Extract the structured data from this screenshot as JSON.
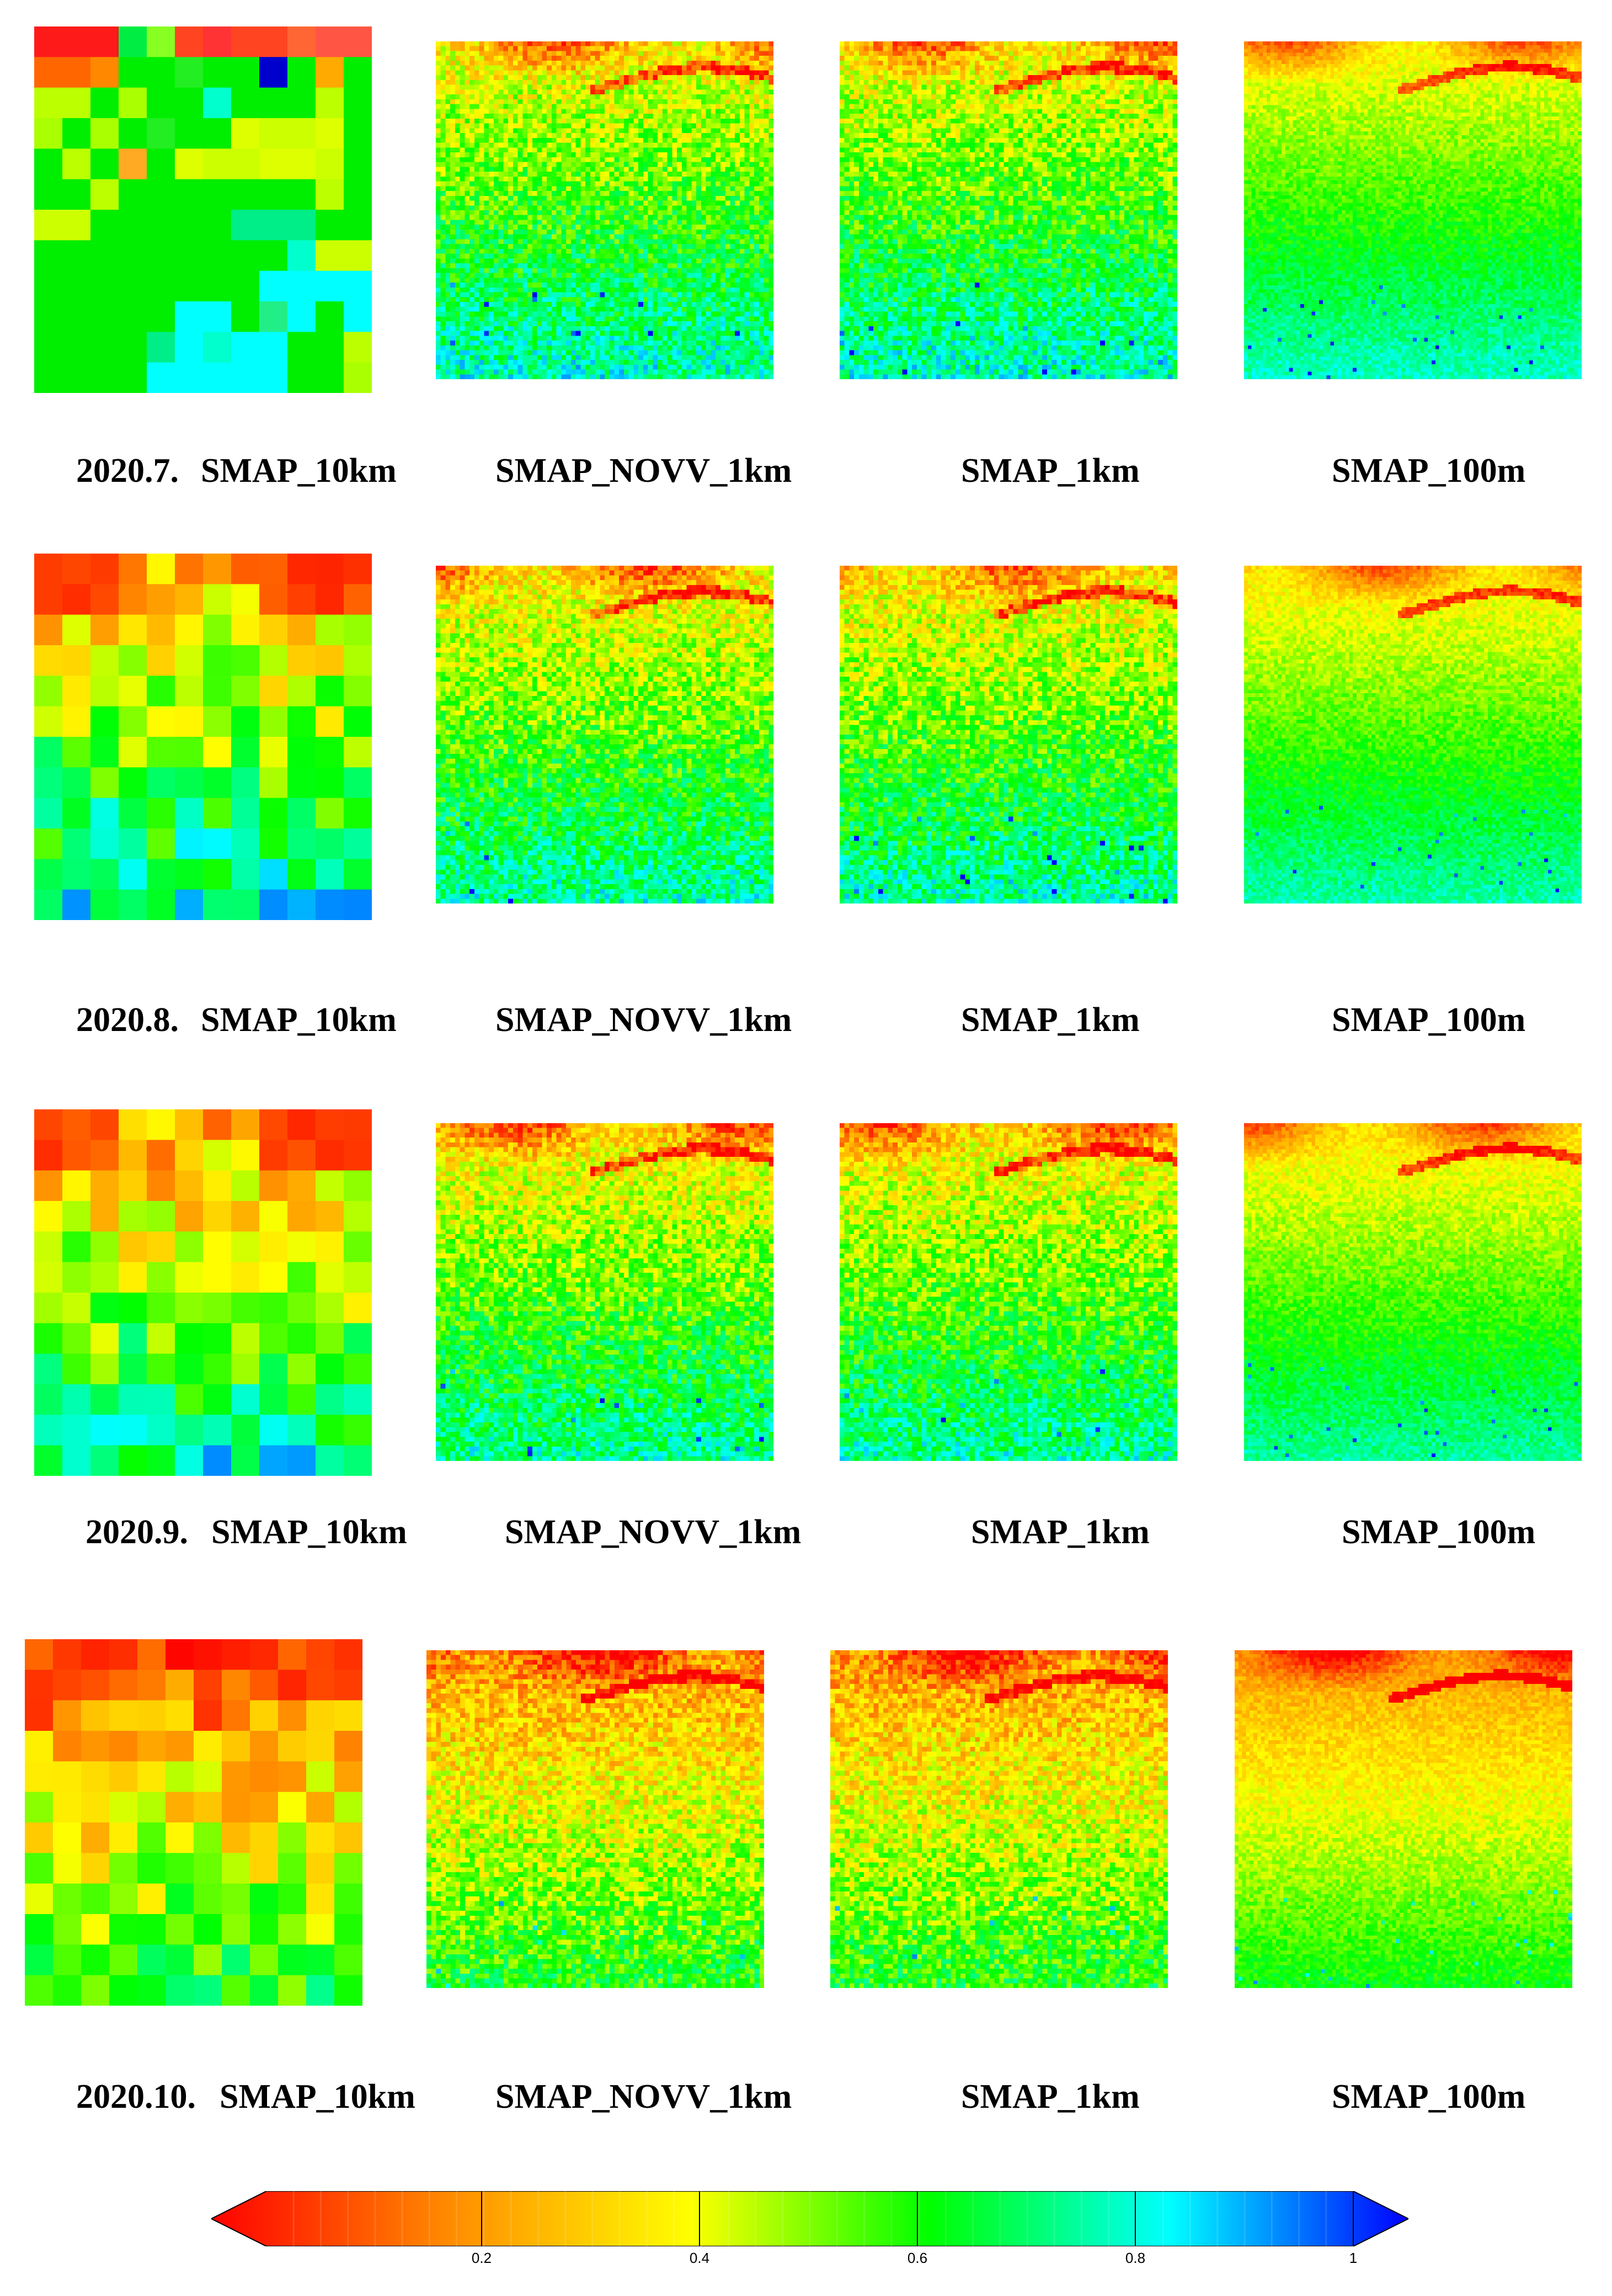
{
  "figure": {
    "rows": [
      {
        "month": "2020.7.",
        "col_labels": [
          "SMAP_10km",
          "SMAP_NOVV_1km",
          "SMAP_1km",
          "SMAP_100m"
        ]
      },
      {
        "month": "2020.8.",
        "col_labels": [
          "SMAP_10km",
          "SMAP_NOVV_1km",
          "SMAP_1km",
          "SMAP_100m"
        ]
      },
      {
        "month": "2020.9.",
        "col_labels": [
          "SMAP_10km",
          "SMAP_NOVV_1km",
          "SMAP_1km",
          "SMAP_100m"
        ]
      },
      {
        "month": "2020.10.",
        "col_labels": [
          "SMAP_10km",
          "SMAP_NOVV_1km",
          "SMAP_1km",
          "SMAP_100m"
        ]
      }
    ],
    "colorbar": {
      "min": 0,
      "max": 1,
      "ticks": [
        "0.2",
        "0.4",
        "0.6",
        "0.8",
        "1"
      ],
      "tick_values": [
        0.2,
        0.4,
        0.6,
        0.8,
        1.0
      ],
      "colors": [
        "#ff0000",
        "#ff8c00",
        "#ffff00",
        "#00ff00",
        "#00ffff",
        "#0000ff"
      ]
    },
    "coarse_grid_colors": {
      "row_0": [
        [
          "#ff1a1a",
          "#ff1a1a",
          "#ff1a1a",
          "#00ee44",
          "#88ff22",
          "#ff4422",
          "#ff3333",
          "#ff4422",
          "#ff4422",
          "#ff6633",
          "#ff5544",
          "#ff5544"
        ],
        [
          "#ff6600",
          "#ff6600",
          "#ff8800",
          "#00ee00",
          "#00ee00",
          "#22ee22",
          "#00ee00",
          "#00ee00",
          "#0000cc",
          "#00ee00",
          "#ffaa00",
          "#00ee00"
        ],
        [
          "#bbff00",
          "#bbff00",
          "#00ee00",
          "#aaff00",
          "#00ee00",
          "#00ee00",
          "#00ffcc",
          "#00ee00",
          "#00ee00",
          "#00ee00",
          "#bbff00",
          "#00ee00"
        ],
        [
          "#aaff00",
          "#00ee00",
          "#aaff00",
          "#00ee00",
          "#22ee22",
          "#00ee00",
          "#00ee00",
          "#ddff00",
          "#ccff00",
          "#ccff00",
          "#ddff00",
          "#00ee00"
        ],
        [
          "#00ee00",
          "#bbff00",
          "#00ee00",
          "#ffaa22",
          "#00ee00",
          "#ddff00",
          "#ccff00",
          "#ccff00",
          "#ddff00",
          "#ddff00",
          "#ccff00",
          "#00ee00"
        ],
        [
          "#00ee00",
          "#00ee00",
          "#bbff00",
          "#00ee00",
          "#00ee00",
          "#00ee00",
          "#00ee00",
          "#00ee00",
          "#00ee00",
          "#00ee00",
          "#bbff00",
          "#00ee00"
        ],
        [
          "#ccff00",
          "#ccff00",
          "#00ee00",
          "#00ee00",
          "#00ee00",
          "#00ee00",
          "#00ee00",
          "#00ee88",
          "#00ee88",
          "#00ee88",
          "#00ee00",
          "#00ee00"
        ],
        [
          "#00ee00",
          "#00ee00",
          "#00ee00",
          "#00ee00",
          "#00ee00",
          "#00ee00",
          "#00ee00",
          "#00ee00",
          "#00ee00",
          "#00ffcc",
          "#ccff00",
          "#ccff00"
        ],
        [
          "#00ee00",
          "#00ee00",
          "#00ee00",
          "#00ee00",
          "#00ee00",
          "#00ee00",
          "#00ee00",
          "#00ee00",
          "#00ffff",
          "#00ffff",
          "#00ffff",
          "#00ffff"
        ],
        [
          "#00ee00",
          "#00ee00",
          "#00ee00",
          "#00ee00",
          "#00ee00",
          "#00ffff",
          "#00ffff",
          "#00ee00",
          "#22ee88",
          "#00ffff",
          "#00ee00",
          "#00ffff"
        ],
        [
          "#00ee00",
          "#00ee00",
          "#00ee00",
          "#00ee00",
          "#00ee88",
          "#00ffff",
          "#00ffcc",
          "#00ffff",
          "#00ffff",
          "#00ee00",
          "#00ee00",
          "#bbff00"
        ],
        [
          "#00ee00",
          "#00ee00",
          "#00ee00",
          "#00ee00",
          "#00ffff",
          "#00ffff",
          "#00ffff",
          "#00ffff",
          "#00ffff",
          "#00ee00",
          "#00ee00",
          "#aaff00"
        ]
      ]
    }
  }
}
